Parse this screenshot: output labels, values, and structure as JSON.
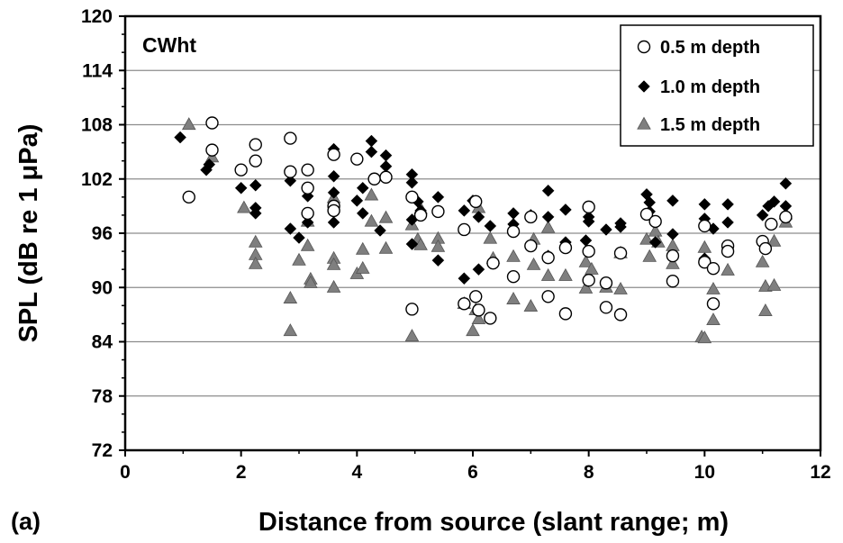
{
  "figure_label": "(a)",
  "chart_data": {
    "type": "scatter",
    "panel_label": "CWht",
    "xlabel": "Distance from source (slant range; m)",
    "ylabel": "SPL (dB re 1 μPa)",
    "xlim": [
      0,
      12
    ],
    "ylim": [
      72,
      120
    ],
    "xticks": [
      0,
      2,
      4,
      6,
      8,
      10,
      12
    ],
    "yticks": [
      72,
      78,
      84,
      90,
      96,
      102,
      108,
      114,
      120
    ],
    "grid": "horizontal",
    "legend_position": "top-right",
    "series": [
      {
        "name": "0.5 m depth",
        "marker": "open-circle",
        "color": "#000000",
        "points": [
          [
            1.1,
            100.0
          ],
          [
            1.5,
            108.2
          ],
          [
            1.5,
            105.2
          ],
          [
            2.0,
            103.0
          ],
          [
            2.25,
            105.8
          ],
          [
            2.25,
            104.0
          ],
          [
            2.85,
            106.5
          ],
          [
            2.85,
            102.8
          ],
          [
            3.15,
            103.0
          ],
          [
            3.15,
            101.0
          ],
          [
            3.15,
            98.2
          ],
          [
            3.6,
            104.7
          ],
          [
            3.6,
            99.0
          ],
          [
            3.6,
            98.5
          ],
          [
            4.0,
            104.2
          ],
          [
            4.3,
            102.0
          ],
          [
            4.5,
            102.2
          ],
          [
            4.95,
            100.0
          ],
          [
            4.95,
            87.6
          ],
          [
            5.1,
            98.0
          ],
          [
            5.4,
            98.4
          ],
          [
            5.85,
            96.4
          ],
          [
            5.85,
            88.2
          ],
          [
            6.05,
            99.5
          ],
          [
            6.05,
            89.0
          ],
          [
            6.1,
            87.5
          ],
          [
            6.3,
            86.6
          ],
          [
            6.35,
            92.7
          ],
          [
            6.7,
            96.2
          ],
          [
            6.7,
            91.2
          ],
          [
            7.0,
            97.8
          ],
          [
            7.0,
            94.6
          ],
          [
            7.3,
            93.3
          ],
          [
            7.3,
            89.0
          ],
          [
            7.6,
            94.4
          ],
          [
            7.6,
            87.1
          ],
          [
            8.0,
            98.9
          ],
          [
            8.0,
            94.0
          ],
          [
            8.0,
            90.8
          ],
          [
            8.3,
            90.5
          ],
          [
            8.3,
            87.8
          ],
          [
            8.55,
            93.8
          ],
          [
            8.55,
            87.0
          ],
          [
            9.0,
            98.1
          ],
          [
            9.15,
            97.3
          ],
          [
            9.45,
            90.7
          ],
          [
            9.45,
            93.5
          ],
          [
            10.0,
            96.8
          ],
          [
            10.0,
            92.8
          ],
          [
            10.15,
            92.1
          ],
          [
            10.15,
            88.2
          ],
          [
            10.4,
            94.6
          ],
          [
            10.4,
            94.0
          ],
          [
            11.0,
            95.1
          ],
          [
            11.05,
            94.3
          ],
          [
            11.15,
            97.0
          ],
          [
            11.4,
            97.8
          ]
        ]
      },
      {
        "name": "1.0 m depth",
        "marker": "filled-diamond",
        "color": "#000000",
        "points": [
          [
            0.95,
            106.6
          ],
          [
            1.4,
            103.0
          ],
          [
            1.45,
            103.6
          ],
          [
            2.0,
            101.0
          ],
          [
            2.25,
            101.3
          ],
          [
            2.25,
            98.8
          ],
          [
            2.25,
            98.2
          ],
          [
            2.85,
            101.8
          ],
          [
            2.85,
            96.5
          ],
          [
            3.0,
            95.5
          ],
          [
            3.15,
            100.1
          ],
          [
            3.15,
            97.2
          ],
          [
            3.6,
            105.3
          ],
          [
            3.6,
            102.3
          ],
          [
            3.6,
            100.5
          ],
          [
            3.6,
            97.2
          ],
          [
            4.0,
            99.6
          ],
          [
            4.1,
            98.2
          ],
          [
            4.1,
            101.0
          ],
          [
            4.25,
            106.2
          ],
          [
            4.25,
            105.0
          ],
          [
            4.5,
            104.6
          ],
          [
            4.5,
            103.4
          ],
          [
            4.4,
            96.3
          ],
          [
            4.95,
            102.5
          ],
          [
            4.95,
            101.6
          ],
          [
            4.95,
            97.5
          ],
          [
            4.95,
            94.8
          ],
          [
            5.05,
            99.5
          ],
          [
            5.1,
            98.5
          ],
          [
            5.4,
            100.0
          ],
          [
            5.4,
            93.0
          ],
          [
            5.85,
            98.5
          ],
          [
            5.85,
            91.0
          ],
          [
            6.0,
            99.6
          ],
          [
            6.1,
            97.8
          ],
          [
            6.1,
            92.0
          ],
          [
            6.3,
            96.8
          ],
          [
            6.7,
            98.2
          ],
          [
            6.7,
            97.0
          ],
          [
            7.0,
            98.0
          ],
          [
            7.3,
            100.7
          ],
          [
            7.3,
            97.8
          ],
          [
            7.3,
            93.5
          ],
          [
            7.6,
            98.6
          ],
          [
            7.6,
            95.0
          ],
          [
            8.0,
            97.8
          ],
          [
            8.0,
            97.3
          ],
          [
            7.95,
            95.2
          ],
          [
            8.3,
            96.4
          ],
          [
            8.55,
            97.1
          ],
          [
            8.55,
            96.7
          ],
          [
            9.0,
            100.3
          ],
          [
            9.05,
            99.4
          ],
          [
            9.05,
            98.4
          ],
          [
            9.15,
            95.0
          ],
          [
            9.45,
            99.6
          ],
          [
            9.45,
            95.9
          ],
          [
            10.0,
            99.2
          ],
          [
            10.0,
            97.6
          ],
          [
            10.0,
            93.2
          ],
          [
            10.15,
            96.5
          ],
          [
            10.4,
            99.2
          ],
          [
            10.4,
            97.2
          ],
          [
            11.0,
            98.0
          ],
          [
            11.1,
            99.0
          ],
          [
            11.2,
            99.5
          ],
          [
            11.4,
            101.5
          ],
          [
            11.4,
            99.0
          ]
        ]
      },
      {
        "name": "1.5 m depth",
        "marker": "filled-triangle",
        "color": "#7f7f7f",
        "points": [
          [
            1.1,
            108.0
          ],
          [
            1.5,
            104.4
          ],
          [
            2.05,
            98.8
          ],
          [
            2.25,
            95.0
          ],
          [
            2.25,
            93.6
          ],
          [
            2.25,
            92.6
          ],
          [
            2.85,
            88.8
          ],
          [
            2.85,
            85.2
          ],
          [
            3.0,
            93.0
          ],
          [
            3.15,
            94.6
          ],
          [
            3.15,
            97.3
          ],
          [
            3.2,
            90.9
          ],
          [
            3.2,
            90.5
          ],
          [
            3.6,
            99.9
          ],
          [
            3.6,
            93.2
          ],
          [
            3.6,
            92.5
          ],
          [
            3.6,
            90.0
          ],
          [
            4.0,
            91.5
          ],
          [
            4.1,
            94.2
          ],
          [
            4.1,
            92.1
          ],
          [
            4.25,
            100.2
          ],
          [
            4.25,
            97.3
          ],
          [
            4.5,
            97.7
          ],
          [
            4.5,
            94.3
          ],
          [
            4.95,
            96.9
          ],
          [
            4.95,
            84.6
          ],
          [
            5.05,
            95.3
          ],
          [
            5.1,
            94.7
          ],
          [
            5.1,
            98.7
          ],
          [
            5.4,
            95.4
          ],
          [
            5.4,
            94.5
          ],
          [
            5.85,
            88.2
          ],
          [
            6.0,
            85.2
          ],
          [
            6.05,
            87.5
          ],
          [
            6.1,
            86.5
          ],
          [
            6.1,
            98.8
          ],
          [
            6.3,
            95.4
          ],
          [
            6.35,
            93.2
          ],
          [
            6.7,
            93.4
          ],
          [
            6.7,
            88.7
          ],
          [
            7.0,
            87.9
          ],
          [
            7.05,
            95.3
          ],
          [
            7.05,
            92.5
          ],
          [
            7.3,
            96.6
          ],
          [
            7.3,
            91.3
          ],
          [
            7.6,
            91.3
          ],
          [
            7.95,
            92.8
          ],
          [
            7.95,
            89.9
          ],
          [
            8.05,
            92.0
          ],
          [
            8.3,
            90.0
          ],
          [
            8.55,
            89.8
          ],
          [
            8.55,
            93.8
          ],
          [
            9.0,
            95.3
          ],
          [
            9.05,
            93.4
          ],
          [
            9.15,
            96.2
          ],
          [
            9.2,
            95.0
          ],
          [
            9.45,
            94.6
          ],
          [
            9.45,
            92.6
          ],
          [
            9.95,
            84.5
          ],
          [
            10.0,
            84.4
          ],
          [
            10.0,
            94.4
          ],
          [
            10.15,
            89.8
          ],
          [
            10.15,
            86.4
          ],
          [
            10.4,
            91.9
          ],
          [
            11.0,
            92.8
          ],
          [
            11.05,
            90.1
          ],
          [
            11.05,
            87.4
          ],
          [
            11.2,
            90.2
          ],
          [
            11.2,
            95.1
          ],
          [
            11.4,
            97.2
          ],
          [
            11.4,
            98.1
          ]
        ]
      }
    ]
  }
}
